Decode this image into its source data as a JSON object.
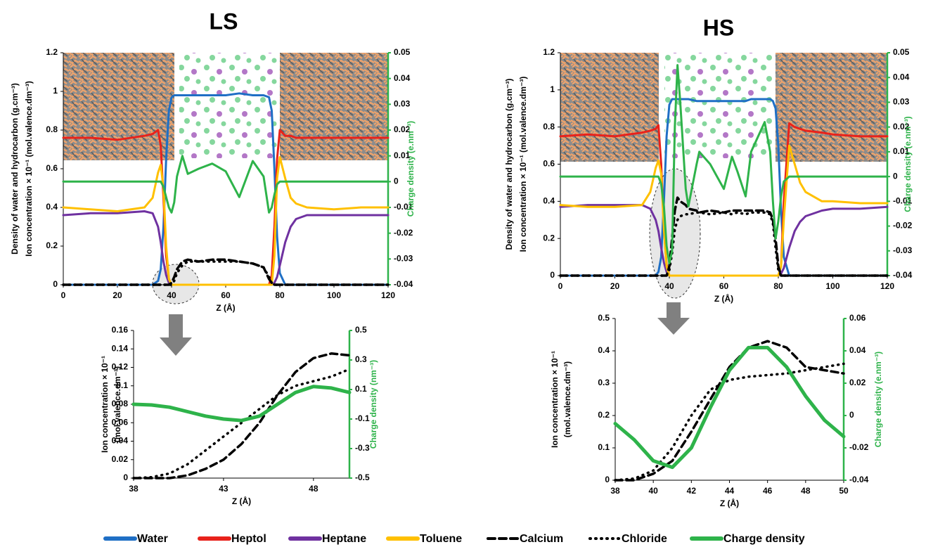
{
  "chart_data": [
    {
      "type": "line",
      "title": "LS",
      "x_label": "Z (Å)",
      "y_label": [
        "Density of water and hydrocarbon (g.cm⁻³)",
        "Ion concentration × 10⁻¹  (mol.valence.dm⁻³)"
      ],
      "y2_label": "Charge density (e.nm⁻³)",
      "y2_color": "#2eb34a",
      "xlim": [
        0,
        120
      ],
      "xticks": [
        0,
        20,
        40,
        60,
        80,
        100,
        120
      ],
      "ylim": [
        0,
        1.2
      ],
      "yticks": [
        0,
        0.2,
        0.4,
        0.6,
        0.8,
        1,
        1.2
      ],
      "y2lim": [
        -0.04,
        0.05
      ],
      "y2ticks": [
        -0.04,
        -0.03,
        -0.02,
        -0.01,
        0,
        0.01,
        0.02,
        0.03,
        0.04,
        0.05
      ],
      "x": [
        0,
        10,
        20,
        30,
        33,
        35,
        36,
        37,
        38,
        39,
        40,
        41,
        42,
        44,
        46,
        50,
        55,
        60,
        65,
        70,
        74,
        76,
        77,
        78,
        79,
        80,
        82,
        84,
        86,
        90,
        100,
        110,
        120
      ],
      "series": [
        {
          "name": "Water",
          "color": "#1f6fc5",
          "line_style": "solid",
          "values": [
            0,
            0,
            0,
            0,
            0,
            0.02,
            0.08,
            0.3,
            0.65,
            0.9,
            0.97,
            0.98,
            0.98,
            0.98,
            0.98,
            0.98,
            0.98,
            0.98,
            0.99,
            0.98,
            0.98,
            0.97,
            0.9,
            0.6,
            0.25,
            0.06,
            0,
            0,
            0,
            0,
            0,
            0,
            0
          ]
        },
        {
          "name": "Heptol",
          "color": "#e8221b",
          "line_style": "solid",
          "values": [
            0.76,
            0.76,
            0.75,
            0.77,
            0.78,
            0.8,
            0.72,
            0.45,
            0.15,
            0.03,
            0,
            0,
            0,
            0,
            0,
            0,
            0,
            0,
            0,
            0,
            0,
            0,
            0.05,
            0.3,
            0.65,
            0.8,
            0.77,
            0.77,
            0.76,
            0.76,
            0.76,
            0.76,
            0.76
          ]
        },
        {
          "name": "Heptane",
          "color": "#6f31a0",
          "line_style": "solid",
          "values": [
            0.36,
            0.37,
            0.37,
            0.38,
            0.37,
            0.3,
            0.22,
            0.12,
            0.05,
            0.01,
            0,
            0,
            0,
            0,
            0,
            0,
            0,
            0,
            0,
            0,
            0,
            0,
            0,
            0.01,
            0.04,
            0.1,
            0.22,
            0.3,
            0.34,
            0.36,
            0.36,
            0.36,
            0.36
          ]
        },
        {
          "name": "Toluene",
          "color": "#ffc000",
          "line_style": "solid",
          "values": [
            0.4,
            0.39,
            0.38,
            0.4,
            0.45,
            0.58,
            0.62,
            0.5,
            0.2,
            0.03,
            0,
            0,
            0,
            0,
            0,
            0,
            0,
            0,
            0,
            0,
            0,
            0,
            0,
            0.15,
            0.55,
            0.66,
            0.55,
            0.45,
            0.42,
            0.4,
            0.39,
            0.4,
            0.4
          ]
        },
        {
          "name": "Calcium",
          "color": "#000000",
          "line_style": "dashed",
          "values": [
            0,
            0,
            0,
            0,
            0,
            0,
            0,
            0,
            0,
            0,
            0.01,
            0.04,
            0.08,
            0.12,
            0.13,
            0.12,
            0.13,
            0.13,
            0.12,
            0.11,
            0.09,
            0.03,
            0.01,
            0,
            0,
            0,
            0,
            0,
            0,
            0,
            0,
            0,
            0
          ]
        },
        {
          "name": "Chloride",
          "color": "#000000",
          "line_style": "dotted",
          "values": [
            0,
            0,
            0,
            0,
            0,
            0,
            0,
            0,
            0,
            0,
            0,
            0.02,
            0.06,
            0.1,
            0.12,
            0.12,
            0.12,
            0.12,
            0.12,
            0.11,
            0.09,
            0.04,
            0.01,
            0,
            0,
            0,
            0,
            0,
            0,
            0,
            0,
            0,
            0
          ]
        },
        {
          "name": "Charge density",
          "color": "#2eb34a",
          "line_style": "solid",
          "axis": "y2",
          "values": [
            0,
            0,
            0,
            0,
            0,
            0,
            0,
            -0.002,
            -0.006,
            -0.01,
            -0.012,
            -0.008,
            0.002,
            0.01,
            0.003,
            0.005,
            0.007,
            0.004,
            -0.006,
            0.008,
            0.002,
            -0.012,
            -0.01,
            -0.005,
            -0.001,
            0,
            0,
            0,
            0,
            0,
            0,
            0,
            0
          ]
        }
      ]
    },
    {
      "type": "line",
      "title": "HS",
      "x_label": "Z (Å)",
      "y_label": [
        "Density of water and hydrocarbon (g.cm⁻³)",
        "Ion concentration × 10⁻¹  (mol.valence.dm⁻³)"
      ],
      "y2_label": "Charge density (e.nm⁻³)",
      "y2_color": "#2eb34a",
      "xlim": [
        0,
        120
      ],
      "xticks": [
        0,
        20,
        40,
        60,
        80,
        100,
        120
      ],
      "ylim": [
        0,
        1.2
      ],
      "yticks": [
        0,
        0.2,
        0.4,
        0.6,
        0.8,
        1,
        1.2
      ],
      "y2lim": [
        -0.04,
        0.05
      ],
      "y2ticks": [
        -0.04,
        -0.03,
        -0.02,
        -0.01,
        0,
        0.01,
        0.02,
        0.03,
        0.04,
        0.05
      ],
      "x": [
        0,
        10,
        20,
        30,
        33,
        35,
        36,
        37,
        38,
        39,
        40,
        41,
        42,
        43,
        44,
        46,
        47,
        50,
        51,
        55,
        60,
        63,
        65,
        68,
        70,
        75,
        77,
        78,
        79,
        80,
        81,
        82,
        84,
        86,
        88,
        90,
        96,
        100,
        110,
        120
      ],
      "series": [
        {
          "name": "Water",
          "color": "#1f6fc5",
          "line_style": "solid",
          "values": [
            0,
            0,
            0,
            0,
            0,
            0,
            0.02,
            0.1,
            0.4,
            0.75,
            0.92,
            0.95,
            0.95,
            0.95,
            0.95,
            0.95,
            0.95,
            0.94,
            0.94,
            0.94,
            0.94,
            0.94,
            0.94,
            0.94,
            0.95,
            0.95,
            0.95,
            0.94,
            0.9,
            0.7,
            0.35,
            0.1,
            0,
            0,
            0,
            0,
            0,
            0,
            0,
            0
          ]
        },
        {
          "name": "Heptol",
          "color": "#e8221b",
          "line_style": "solid",
          "values": [
            0.75,
            0.76,
            0.75,
            0.77,
            0.78,
            0.79,
            0.81,
            0.6,
            0.25,
            0.06,
            0,
            0,
            0,
            0,
            0,
            0,
            0,
            0,
            0,
            0,
            0,
            0,
            0,
            0,
            0,
            0,
            0,
            0,
            0,
            0,
            0.05,
            0.4,
            0.82,
            0.8,
            0.79,
            0.78,
            0.77,
            0.76,
            0.75,
            0.75
          ]
        },
        {
          "name": "Heptane",
          "color": "#6f31a0",
          "line_style": "solid",
          "values": [
            0.37,
            0.38,
            0.38,
            0.38,
            0.36,
            0.3,
            0.24,
            0.15,
            0.07,
            0.02,
            0,
            0,
            0,
            0,
            0,
            0,
            0,
            0,
            0,
            0,
            0,
            0,
            0,
            0,
            0,
            0,
            0,
            0,
            0,
            0,
            0.01,
            0.04,
            0.15,
            0.24,
            0.29,
            0.32,
            0.35,
            0.36,
            0.36,
            0.37
          ]
        },
        {
          "name": "Toluene",
          "color": "#ffc000",
          "line_style": "solid",
          "values": [
            0.38,
            0.37,
            0.37,
            0.38,
            0.45,
            0.58,
            0.62,
            0.55,
            0.25,
            0.05,
            0,
            0,
            0,
            0,
            0,
            0,
            0,
            0,
            0,
            0,
            0,
            0,
            0,
            0,
            0,
            0,
            0,
            0,
            0,
            0,
            0.05,
            0.3,
            0.7,
            0.6,
            0.5,
            0.45,
            0.4,
            0.4,
            0.39,
            0.39
          ]
        },
        {
          "name": "Calcium",
          "color": "#000000",
          "line_style": "dashed",
          "values": [
            0,
            0,
            0,
            0,
            0,
            0,
            0,
            0,
            0,
            0,
            0.05,
            0.2,
            0.35,
            0.42,
            0.4,
            0.38,
            0.36,
            0.35,
            0.34,
            0.35,
            0.34,
            0.35,
            0.35,
            0.35,
            0.35,
            0.35,
            0.34,
            0.3,
            0.2,
            0.05,
            0,
            0,
            0,
            0,
            0,
            0,
            0,
            0,
            0,
            0
          ]
        },
        {
          "name": "Chloride",
          "color": "#000000",
          "line_style": "dotted",
          "values": [
            0,
            0,
            0,
            0,
            0,
            0,
            0,
            0,
            0,
            0,
            0.03,
            0.12,
            0.25,
            0.3,
            0.32,
            0.33,
            0.33,
            0.34,
            0.34,
            0.33,
            0.34,
            0.33,
            0.34,
            0.33,
            0.34,
            0.34,
            0.33,
            0.28,
            0.15,
            0.03,
            0,
            0,
            0,
            0,
            0,
            0,
            0,
            0,
            0,
            0
          ]
        },
        {
          "name": "Charge density",
          "color": "#2eb34a",
          "line_style": "solid",
          "axis": "y2",
          "values": [
            0,
            0,
            0,
            0,
            0,
            0,
            0,
            -0.003,
            -0.012,
            -0.028,
            -0.035,
            -0.03,
            0.02,
            0.045,
            0.03,
            -0.005,
            -0.012,
            0.005,
            0.01,
            0.005,
            -0.005,
            0.008,
            0.002,
            -0.008,
            0.01,
            0.022,
            0.01,
            -0.01,
            -0.025,
            -0.018,
            -0.008,
            -0.002,
            0,
            0,
            0,
            0,
            0,
            0,
            0,
            0
          ]
        }
      ]
    },
    {
      "type": "line",
      "x_label": "Z (Å)",
      "y_label": [
        "Ion concentration × 10⁻¹",
        "(mol.valence.dm⁻³)"
      ],
      "y2_label": "Charge density (nm⁻³)",
      "y2_color": "#2eb34a",
      "xlim": [
        38,
        50
      ],
      "xticks": [
        38,
        43,
        48
      ],
      "ylim": [
        0,
        0.16
      ],
      "yticks": [
        0,
        0.02,
        0.04,
        0.06,
        0.08,
        0.1,
        0.12,
        0.14,
        0.16
      ],
      "y2lim": [
        -0.5,
        0.5
      ],
      "y2ticks": [
        -0.5,
        -0.3,
        -0.1,
        0.1,
        0.3,
        0.5
      ],
      "x": [
        38,
        39,
        40,
        41,
        42,
        43,
        44,
        45,
        46,
        47,
        48,
        49,
        50
      ],
      "series": [
        {
          "name": "Calcium",
          "color": "#000000",
          "line_style": "dashed",
          "values": [
            0,
            0,
            0,
            0.003,
            0.01,
            0.02,
            0.037,
            0.06,
            0.09,
            0.115,
            0.13,
            0.135,
            0.133
          ]
        },
        {
          "name": "Chloride",
          "color": "#000000",
          "line_style": "dotted",
          "values": [
            0,
            0.001,
            0.005,
            0.015,
            0.03,
            0.045,
            0.06,
            0.075,
            0.09,
            0.1,
            0.105,
            0.11,
            0.118
          ]
        },
        {
          "name": "Charge density",
          "color": "#2eb34a",
          "line_style": "solid",
          "axis": "y2",
          "values": [
            0,
            -0.005,
            -0.02,
            -0.05,
            -0.08,
            -0.1,
            -0.11,
            -0.08,
            0,
            0.08,
            0.12,
            0.11,
            0.08
          ]
        }
      ]
    },
    {
      "type": "line",
      "x_label": "Z (Å)",
      "y_label": [
        "Ion concentration × 10⁻¹",
        "(mol.valence.dm⁻³)"
      ],
      "y2_label": "Charge density (e.nm⁻³)",
      "y2_color": "#2eb34a",
      "xlim": [
        38,
        50
      ],
      "xticks": [
        38,
        40,
        42,
        44,
        46,
        48,
        50
      ],
      "ylim": [
        0,
        0.5
      ],
      "yticks": [
        0,
        0.1,
        0.2,
        0.3,
        0.4,
        0.5
      ],
      "y2lim": [
        -0.04,
        0.06
      ],
      "y2ticks": [
        -0.04,
        -0.02,
        0,
        0.02,
        0.04,
        0.06
      ],
      "x": [
        38,
        39,
        40,
        41,
        42,
        43,
        44,
        45,
        46,
        47,
        48,
        49,
        50
      ],
      "series": [
        {
          "name": "Calcium",
          "color": "#000000",
          "line_style": "dashed",
          "values": [
            0,
            0,
            0.02,
            0.06,
            0.15,
            0.25,
            0.35,
            0.41,
            0.43,
            0.41,
            0.35,
            0.34,
            0.33
          ]
        },
        {
          "name": "Chloride",
          "color": "#000000",
          "line_style": "dotted",
          "values": [
            0,
            0.005,
            0.03,
            0.1,
            0.2,
            0.28,
            0.31,
            0.32,
            0.325,
            0.33,
            0.34,
            0.35,
            0.36
          ]
        },
        {
          "name": "Charge density",
          "color": "#2eb34a",
          "line_style": "solid",
          "axis": "y2",
          "values": [
            -0.005,
            -0.015,
            -0.028,
            -0.032,
            -0.02,
            0.005,
            0.028,
            0.042,
            0.042,
            0.03,
            0.012,
            -0.003,
            -0.013
          ]
        }
      ]
    }
  ]
}
